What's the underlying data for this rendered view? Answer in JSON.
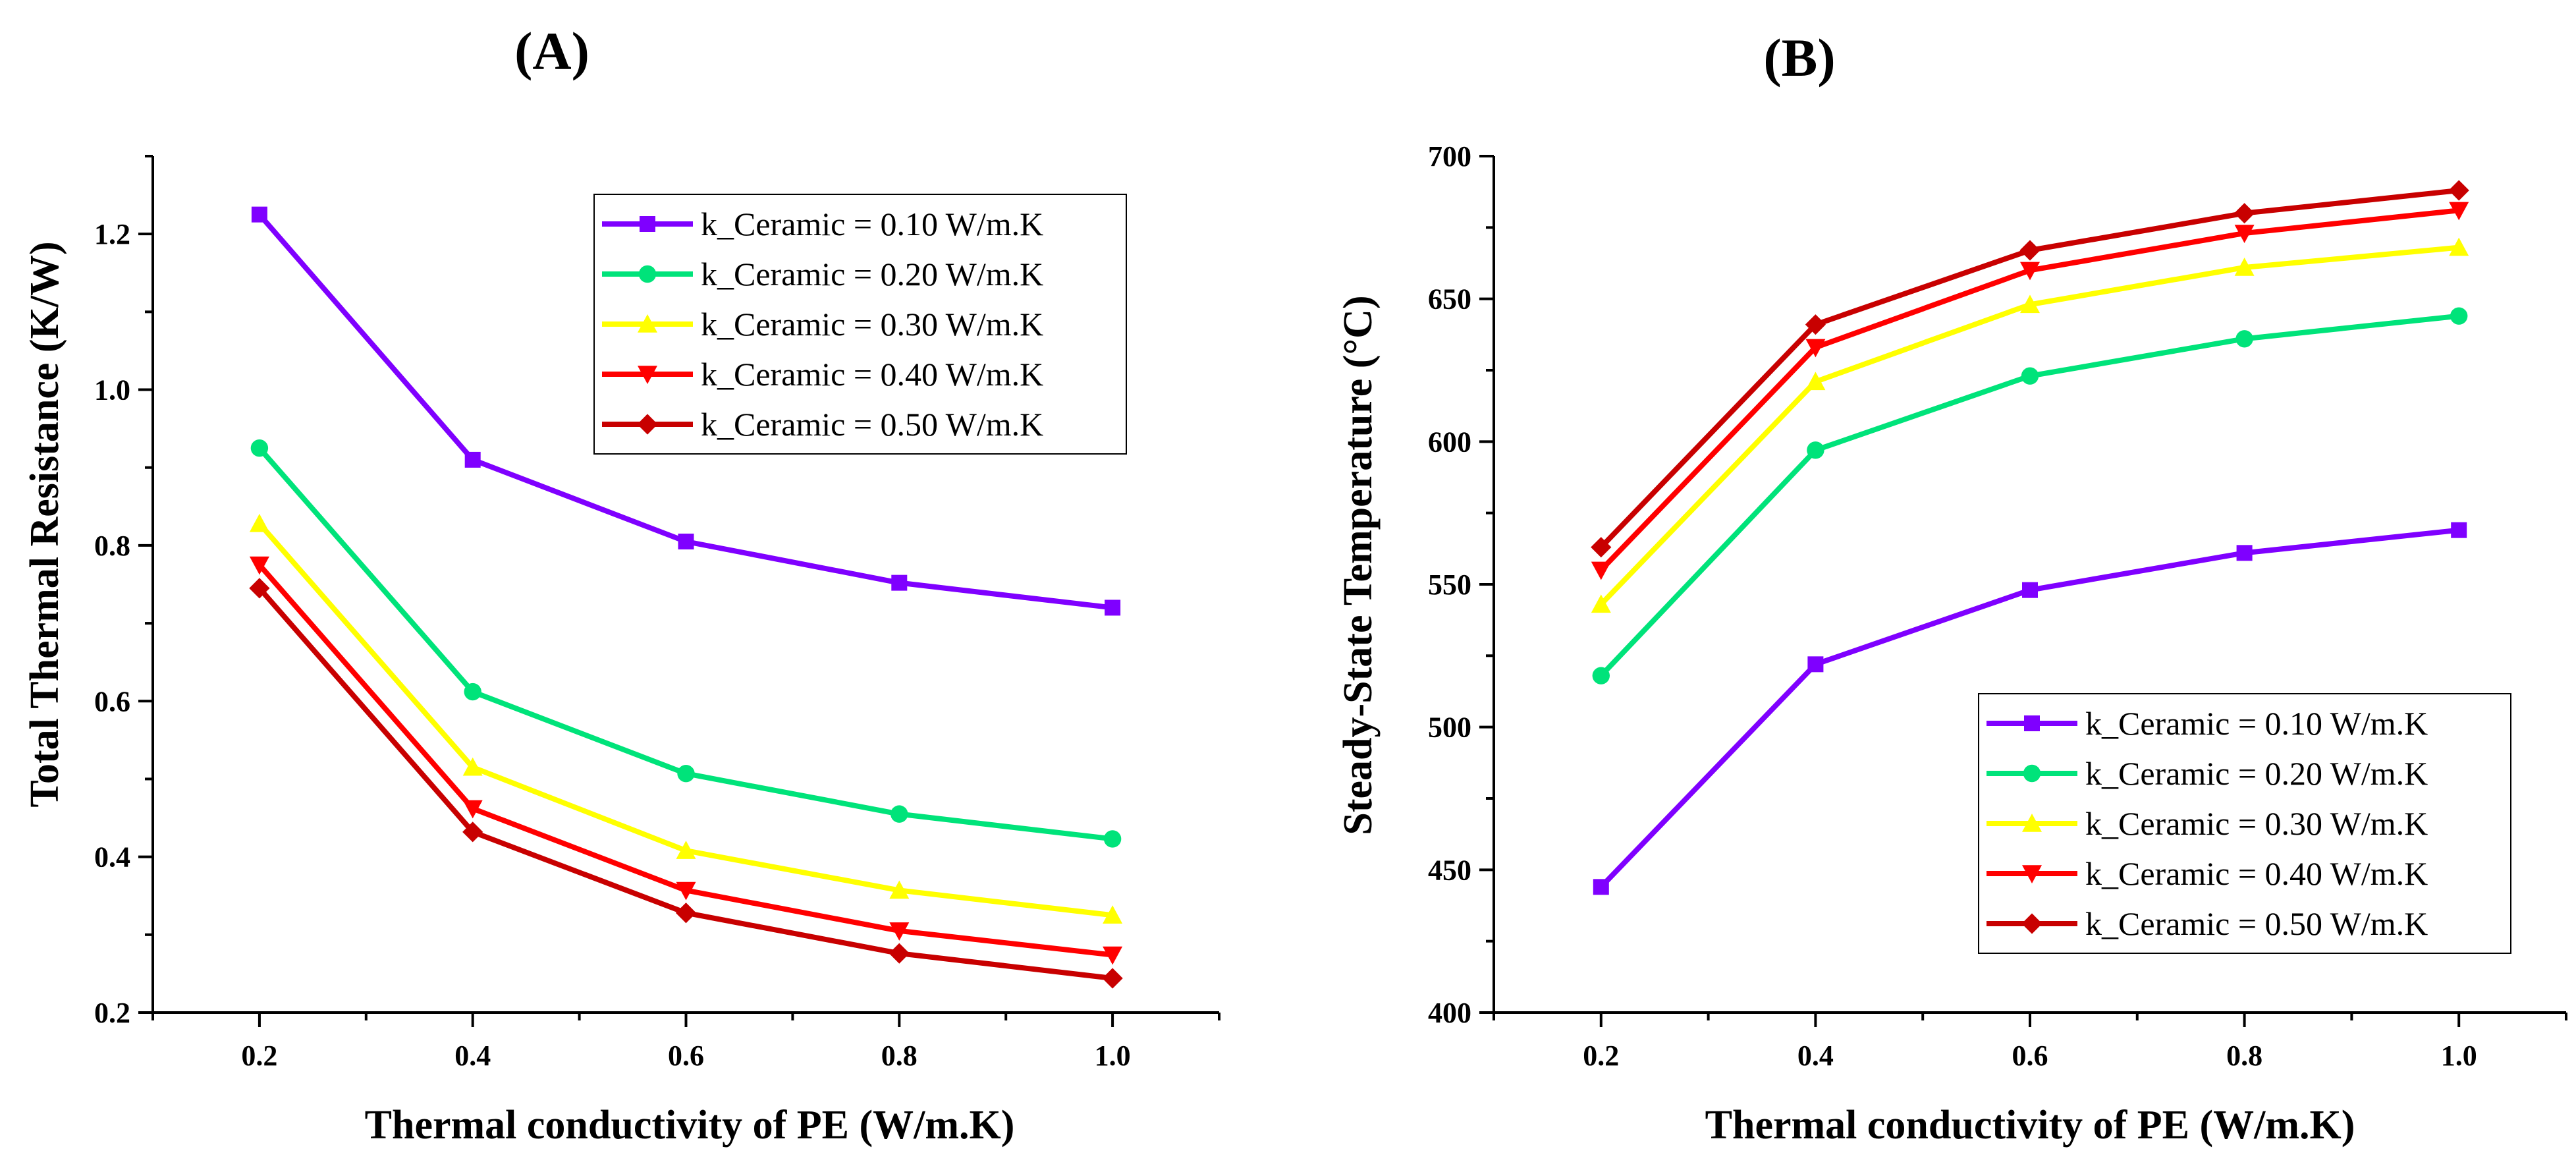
{
  "chart_data": [
    {
      "type": "line",
      "panel_label": "(A)",
      "xlabel": "Thermal conductivity of PE (W/m.K)",
      "ylabel": "Total Thermal Resistance (K/W)",
      "x": [
        0.2,
        0.4,
        0.6,
        0.8,
        1.0
      ],
      "xlim": [
        0.1,
        1.1
      ],
      "ylim": [
        0.2,
        1.3
      ],
      "xticks": [
        "0.2",
        "0.4",
        "0.6",
        "0.8",
        "1.0"
      ],
      "yticks": [
        "0.2",
        "0.4",
        "0.6",
        "0.8",
        "1.0",
        "1.2"
      ],
      "legend_position": "top-right",
      "series": [
        {
          "name": "k_Ceramic = 0.10 W/m.K",
          "color": "#7f00ff",
          "marker": "square",
          "values": [
            1.225,
            0.91,
            0.805,
            0.752,
            0.72
          ]
        },
        {
          "name": "k_Ceramic = 0.20 W/m.K",
          "color": "#00e37a",
          "marker": "circle",
          "values": [
            0.925,
            0.612,
            0.507,
            0.455,
            0.423
          ]
        },
        {
          "name": "k_Ceramic = 0.30 W/m.K",
          "color": "#ffff00",
          "marker": "triangle-up",
          "values": [
            0.828,
            0.515,
            0.408,
            0.357,
            0.325
          ]
        },
        {
          "name": "k_Ceramic = 0.40 W/m.K",
          "color": "#ff0000",
          "marker": "triangle-down",
          "values": [
            0.775,
            0.462,
            0.357,
            0.305,
            0.274
          ]
        },
        {
          "name": "k_Ceramic = 0.50 W/m.K",
          "color": "#c80000",
          "marker": "diamond",
          "values": [
            0.745,
            0.432,
            0.328,
            0.276,
            0.244
          ]
        }
      ]
    },
    {
      "type": "line",
      "panel_label": "(B)",
      "xlabel": "Thermal conductivity of PE (W/m.K)",
      "ylabel": "Steady-State Temperature (°C)",
      "x": [
        0.2,
        0.4,
        0.6,
        0.8,
        1.0
      ],
      "xlim": [
        0.1,
        1.1
      ],
      "ylim": [
        400,
        700
      ],
      "xticks": [
        "0.2",
        "0.4",
        "0.6",
        "0.8",
        "1.0"
      ],
      "yticks": [
        "400",
        "450",
        "500",
        "550",
        "600",
        "650",
        "700"
      ],
      "legend_position": "bottom-right",
      "series": [
        {
          "name": "k_Ceramic = 0.10 W/m.K",
          "color": "#7f00ff",
          "marker": "square",
          "values": [
            444,
            522,
            548,
            561,
            569
          ]
        },
        {
          "name": "k_Ceramic = 0.20 W/m.K",
          "color": "#00e37a",
          "marker": "circle",
          "values": [
            518,
            597,
            623,
            636,
            644
          ]
        },
        {
          "name": "k_Ceramic = 0.30 W/m.K",
          "color": "#ffff00",
          "marker": "triangle-up",
          "values": [
            543,
            621,
            648,
            661,
            668
          ]
        },
        {
          "name": "k_Ceramic = 0.40 W/m.K",
          "color": "#ff0000",
          "marker": "triangle-down",
          "values": [
            555,
            633,
            660,
            673,
            681
          ]
        },
        {
          "name": "k_Ceramic = 0.50 W/m.K",
          "color": "#c80000",
          "marker": "diamond",
          "values": [
            563,
            641,
            667,
            680,
            688
          ]
        }
      ]
    }
  ]
}
